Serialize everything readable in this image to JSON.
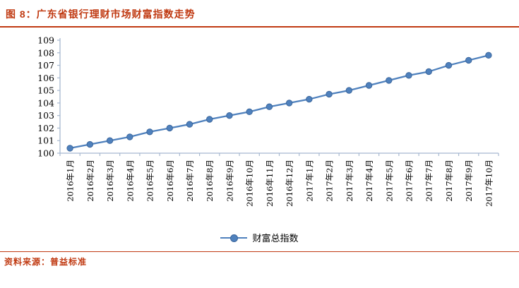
{
  "page": {
    "title": "图 8：广东省银行理财市场财富指数走势",
    "source": "资料来源：普益标准",
    "accent_color": "#C03A12",
    "background_color": "#FFFFFF"
  },
  "chart_data": {
    "type": "line",
    "title": "广东省银行理财市场财富指数走势",
    "categories": [
      "2016年1月",
      "2016年2月",
      "2016年3月",
      "2016年4月",
      "2016年5月",
      "2016年6月",
      "2016年7月",
      "2016年8月",
      "2016年9月",
      "2016年10月",
      "2016年11月",
      "2016年12月",
      "2017年1月",
      "2017年2月",
      "2017年3月",
      "2017年4月",
      "2017年5月",
      "2017年6月",
      "2017年7月",
      "2017年8月",
      "2017年9月",
      "2017年10月"
    ],
    "series": [
      {
        "name": "财富总指数",
        "values": [
          100.4,
          100.7,
          101.0,
          101.3,
          101.7,
          102.0,
          102.3,
          102.7,
          103.0,
          103.3,
          103.7,
          104.0,
          104.3,
          104.7,
          105.0,
          105.4,
          105.8,
          106.2,
          106.5,
          107.0,
          107.4,
          107.8
        ],
        "color": "#4F81BD",
        "marker_stroke": "#3B669C",
        "marker": "circle"
      }
    ],
    "xlabel": "",
    "ylabel": "",
    "ylim": [
      100,
      109
    ],
    "ytick_step": 1,
    "grid": false,
    "legend_position": "bottom",
    "axis_color": "#A6B8D0",
    "tick_label_color": "#000000"
  },
  "legend": {
    "label": "财富总指数"
  }
}
